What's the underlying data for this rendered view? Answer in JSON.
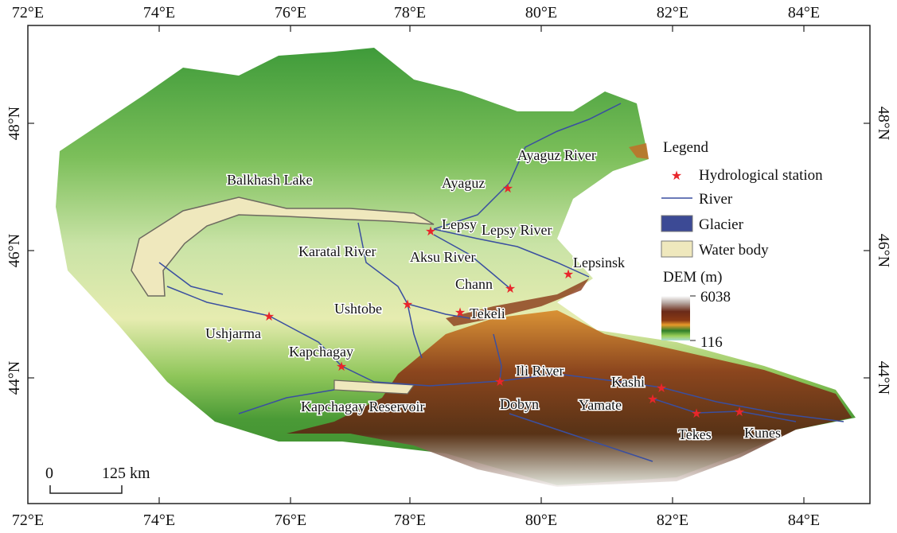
{
  "map": {
    "lon_ticks": [
      "72°E",
      "74°E",
      "76°E",
      "78°E",
      "80°E",
      "82°E",
      "84°E"
    ],
    "lat_ticks": [
      "48°N",
      "46°N",
      "44°N"
    ],
    "water_labels": {
      "balkhash": "Balkhash Lake",
      "kapchagay_reservoir": "Kapchagay Reservoir"
    },
    "rivers": {
      "ayaguz": "Ayaguz River",
      "lepsy": "Lepsy River",
      "karatal": "Karatal River",
      "aksu": "Aksu River",
      "ili": "Ili River"
    },
    "stations": [
      {
        "name": "Ayaguz"
      },
      {
        "name": "Lepsy"
      },
      {
        "name": "Lepsinsk"
      },
      {
        "name": "Chann"
      },
      {
        "name": "Ushtobe"
      },
      {
        "name": "Tekeli"
      },
      {
        "name": "Ushjarma"
      },
      {
        "name": "Kapchagay"
      },
      {
        "name": "Dobyn"
      },
      {
        "name": "Kashi"
      },
      {
        "name": "Yamate"
      },
      {
        "name": "Tekes"
      },
      {
        "name": "Kunes"
      }
    ],
    "scale_bar": {
      "start": "0",
      "end": "125 km"
    }
  },
  "legend": {
    "title": "Legend",
    "items": {
      "station": "Hydrological station",
      "river": "River",
      "glacier": "Glacier",
      "water": "Water body"
    },
    "dem_title": "DEM (m)",
    "dem_max": "6038",
    "dem_min": "116"
  },
  "colors": {
    "station": "#e8262b",
    "river": "#3a4fa0",
    "glacier": "#3c4a95",
    "water": "#efe8bd"
  }
}
